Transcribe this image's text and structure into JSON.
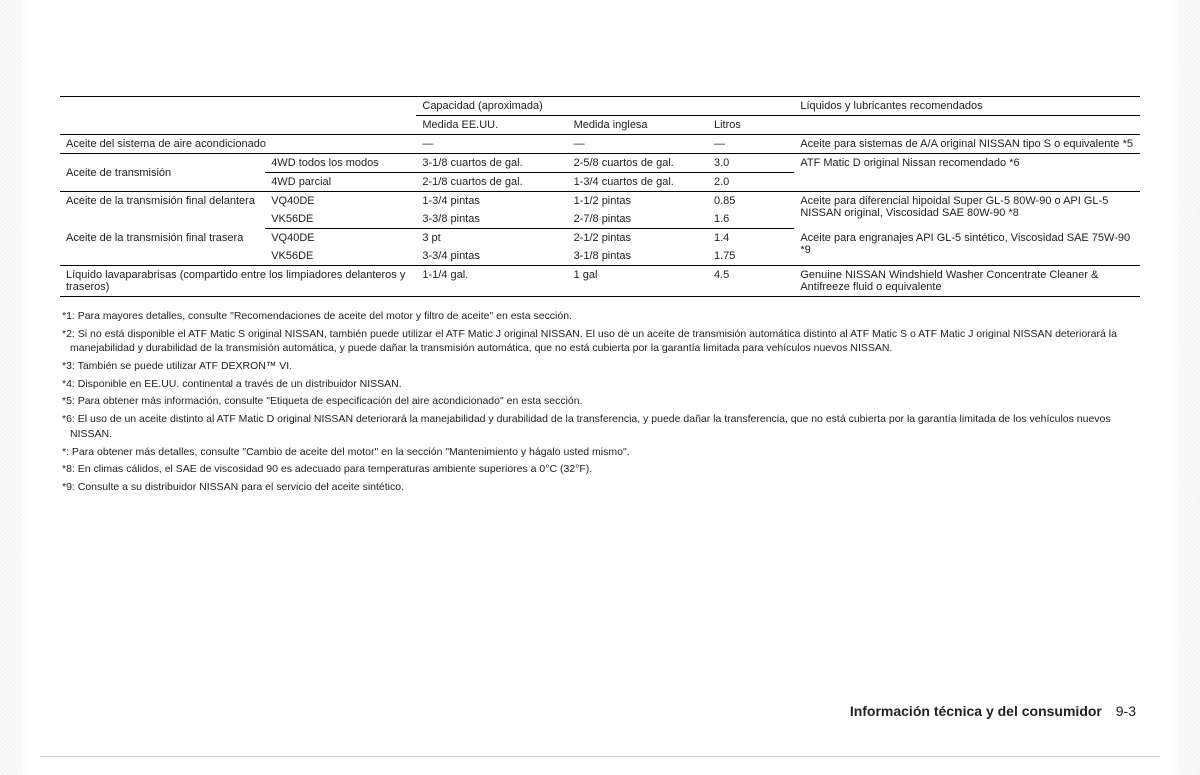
{
  "table": {
    "header": {
      "cap": "Capacidad (aproximada)",
      "us": "Medida EE.UU.",
      "uk": "Medida inglesa",
      "l": "Litros",
      "rec": "Líquidos y lubricantes recomendados"
    },
    "rows": {
      "ac": {
        "label": "Aceite del sistema de aire acondicionado",
        "us": "—",
        "uk": "—",
        "l": "—",
        "rec": "Aceite para sistemas de A/A original NISSAN tipo S o equivalente *5"
      },
      "trans": {
        "label": "Aceite de transmisión",
        "sub1": {
          "lbl": "4WD todos los modos",
          "us": "3-1/8 cuartos de gal.",
          "uk": "2-5/8 cuartos de gal.",
          "l": "3.0"
        },
        "sub2": {
          "lbl": "4WD parcial",
          "us": "2-1/8 cuartos de gal.",
          "uk": "1-3/4 cuartos de gal.",
          "l": "2.0"
        },
        "rec": "ATF Matic D original Nissan recomendado *6"
      },
      "front": {
        "label": "Aceite de la transmisión final delantera",
        "sub1": {
          "lbl": "VQ40DE",
          "us": "1-3/4 pintas",
          "uk": "1-1/2 pintas",
          "l": "0.85"
        },
        "sub2": {
          "lbl": "VK56DE",
          "us": "3-3/8 pintas",
          "uk": "2-7/8 pintas",
          "l": "1.6"
        },
        "rec": "Aceite para diferencial hipoidal Super GL-5 80W-90 o API GL-5 NISSAN original, Viscosidad SAE 80W-90 *8"
      },
      "rear": {
        "label": "Aceite de la transmisión final trasera",
        "sub1": {
          "lbl": "VQ40DE",
          "us": "3 pt",
          "uk": "2-1/2 pintas",
          "l": "1.4"
        },
        "sub2": {
          "lbl": "VK56DE",
          "us": "3-3/4 pintas",
          "uk": "3-1/8 pintas",
          "l": "1.75"
        },
        "rec": "Aceite para engranajes API GL-5 sintético, Viscosidad SAE 75W-90 *9"
      },
      "wash": {
        "label": "Líquido lavaparabrisas (compartido entre los limpiadores delanteros y traseros)",
        "us": "1-1/4 gal.",
        "uk": "1 gal",
        "l": "4.5",
        "rec": "Genuine NISSAN Windshield Washer Concentrate Cleaner & Antifreeze fluid o equivalente"
      }
    }
  },
  "footnotes": {
    "n1": "*1: Para mayores detalles, consulte \"Recomendaciones de aceite del motor y filtro de aceite\" en esta sección.",
    "n2": "*2: Si no está disponible el ATF Matic S original NISSAN, también puede utilizar el ATF Matic J original NISSAN. El uso de un aceite de transmisión automática distinto al ATF Matic S o ATF Matic J original NISSAN deteriorará la manejabilidad y durabilidad de la transmisión automática, y puede dañar la transmisión automática, que no está cubierta por la garantía limitada para vehículos nuevos NISSAN.",
    "n3": "*3: También se puede utilizar ATF DEXRON™ VI.",
    "n4": "*4: Disponible en EE.UU. continental a través de un distribuidor NISSAN.",
    "n5": "*5: Para obtener más información, consulte \"Etiqueta de especificación del aire acondicionado\" en esta sección.",
    "n6": "*6: El uso de un aceite distinto al ATF Matic D original NISSAN deteriorará la manejabilidad y durabilidad de la transferencia, y puede dañar la transferencia, que no está cubierta por la garantía limitada de los vehículos nuevos NISSAN.",
    "n7": "*: Para obtener más detalles, consulte \"Cambio de aceite del motor\" en la sección \"Mantenimiento y hágalo usted mismo\".",
    "n8": "*8: En climas cálidos, el SAE de viscosidad 90 es adecuado para temperaturas ambiente superiores a 0°C (32°F).",
    "n9": "*9: Consulte a su distribuidor NISSAN para el servicio del aceite sintético."
  },
  "footer": {
    "title": "Información técnica y del consumidor",
    "page": "9-3"
  },
  "columns": {
    "c1": "19%",
    "c2": "14%",
    "c3": "14%",
    "c4": "13%",
    "c5": "8%",
    "c6": "32%"
  }
}
